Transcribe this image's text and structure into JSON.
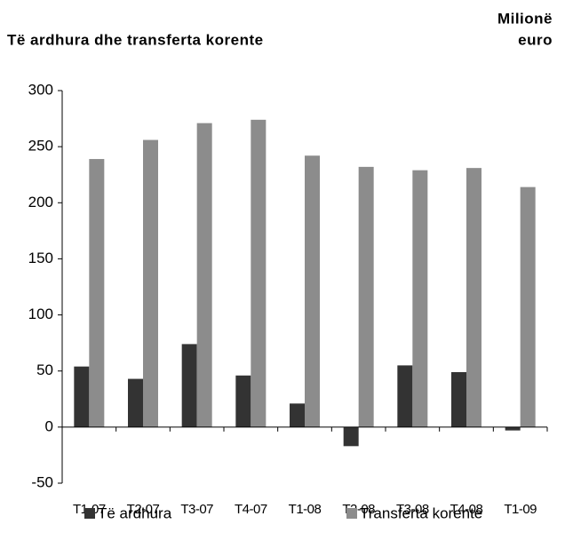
{
  "chart_data": {
    "type": "bar",
    "title": "Të ardhura dhe transferta korente",
    "ylabel": [
      "Milionë",
      "euro"
    ],
    "categories": [
      "T1-07",
      "T2-07",
      "T3-07",
      "T4-07",
      "T1-08",
      "T2-08",
      "T3-08",
      "T4-08",
      "T1-09"
    ],
    "series": [
      {
        "name": "Të ardhura",
        "color": "#333333",
        "values": [
          54,
          43,
          74,
          46,
          21,
          -17,
          55,
          49,
          -3
        ]
      },
      {
        "name": "Transferta korente",
        "color": "#8c8c8c",
        "values": [
          239,
          256,
          271,
          274,
          242,
          232,
          229,
          231,
          214
        ]
      }
    ],
    "ylim": [
      -50,
      300
    ],
    "yticks": [
      -50,
      0,
      50,
      100,
      150,
      200,
      250,
      300
    ],
    "grid": false,
    "legend": "bottom"
  }
}
